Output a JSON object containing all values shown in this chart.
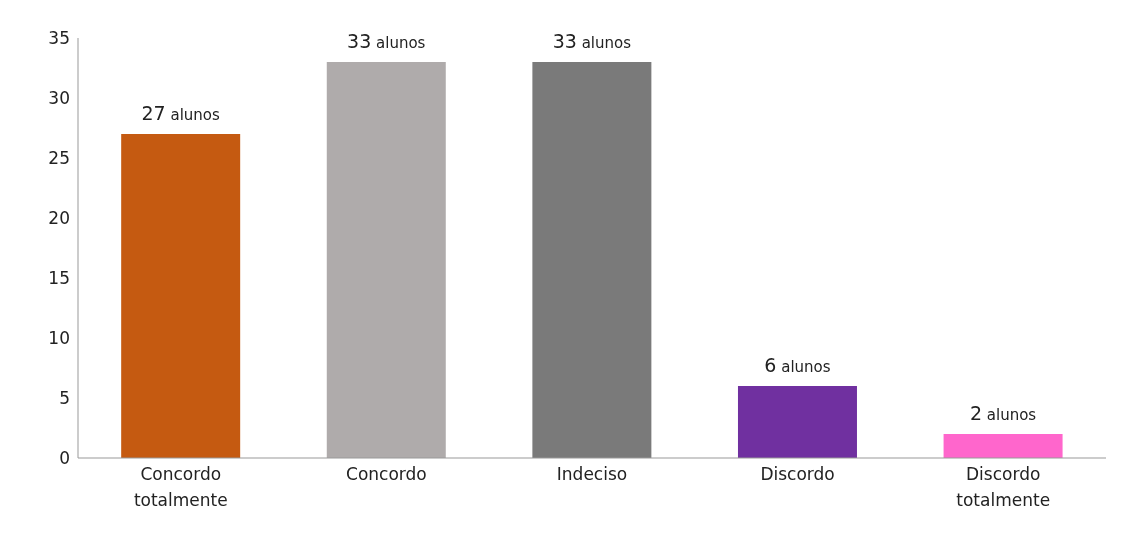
{
  "chart_data": {
    "type": "bar",
    "categories": [
      "Concordo totalmente",
      "Concordo",
      "Indeciso",
      "Discordo",
      "Discordo totalmente"
    ],
    "values": [
      27,
      33,
      33,
      6,
      2
    ],
    "colors": [
      "#c55a11",
      "#afabab",
      "#7a7a7a",
      "#7030a0",
      "#ff66cc"
    ],
    "value_labels": [
      "27 alunos",
      "33 alunos",
      "33 alunos",
      "6 alunos",
      "2 alunos"
    ],
    "ylim": [
      0,
      35
    ],
    "yticks": [
      0,
      5,
      10,
      15,
      20,
      25,
      30,
      35
    ],
    "grid": false,
    "legend": false
  }
}
